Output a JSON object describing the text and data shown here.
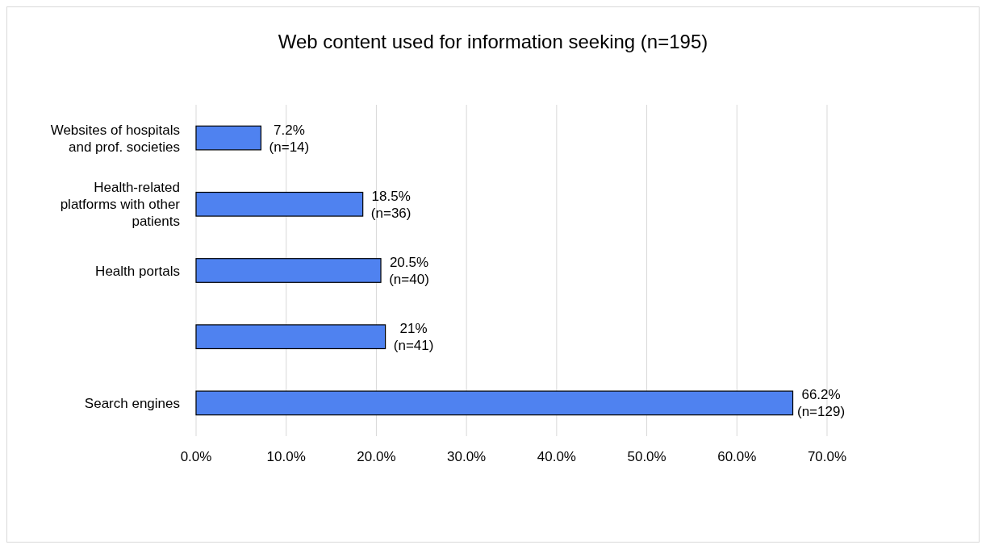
{
  "chart_data": {
    "type": "bar",
    "orientation": "horizontal",
    "title": "Web content used for information seeking (n=195)",
    "categories": [
      "Websites of hospitals and prof. societies",
      "Health-related platforms with other patients",
      "Health portals",
      null,
      "Search engines"
    ],
    "values": [
      7.2,
      18.5,
      20.5,
      21,
      66.2
    ],
    "value_labels": [
      "7.2%\n(n=14)",
      "18.5%\n(n=36)",
      "20.5%\n(n=40)",
      "21%\n(n=41)",
      "66.2%\n(n=129)"
    ],
    "color": "#4f82f0",
    "xlim": [
      0,
      70
    ],
    "xticks": [
      {
        "value": 0,
        "label": "0.0%"
      },
      {
        "value": 10,
        "label": "10.0%"
      },
      {
        "value": 20,
        "label": "20.0%"
      },
      {
        "value": 30,
        "label": "30.0%"
      },
      {
        "value": 40,
        "label": "40.0%"
      },
      {
        "value": 50,
        "label": "50.0%"
      },
      {
        "value": 60,
        "label": "60.0%"
      },
      {
        "value": 70,
        "label": "70.0%"
      }
    ],
    "grid": "x"
  }
}
